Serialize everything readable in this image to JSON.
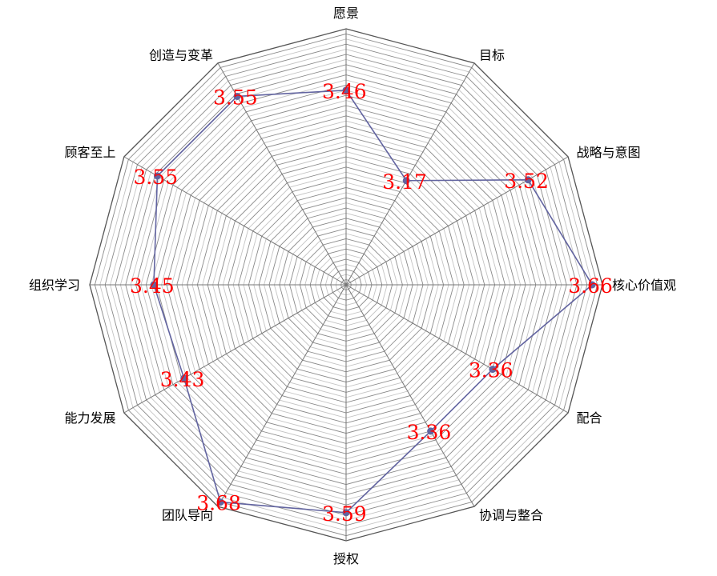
{
  "chart_data": {
    "type": "radar",
    "title": "",
    "categories": [
      "愿景",
      "目标",
      "战略与意图",
      "核心价值观",
      "配合",
      "协调与整合",
      "授权",
      "团队导向",
      "能力发展",
      "组织学习",
      "顾客至上",
      "创造与变革"
    ],
    "series": [
      {
        "values": [
          3.46,
          3.17,
          3.52,
          3.66,
          3.36,
          3.36,
          3.59,
          3.68,
          3.43,
          3.45,
          3.55,
          3.55
        ],
        "labels": [
          "3.46",
          "3.17",
          "3.52",
          "3.66",
          "3.36",
          "3.36",
          "3.59",
          "3.68",
          "3.43",
          "3.45",
          "3.55",
          "3.55"
        ],
        "color": "#6264a0"
      }
    ],
    "rlim": [
      2.7,
      3.7
    ],
    "grid": true,
    "legend": "none",
    "data_label_color": "#ff0000"
  }
}
